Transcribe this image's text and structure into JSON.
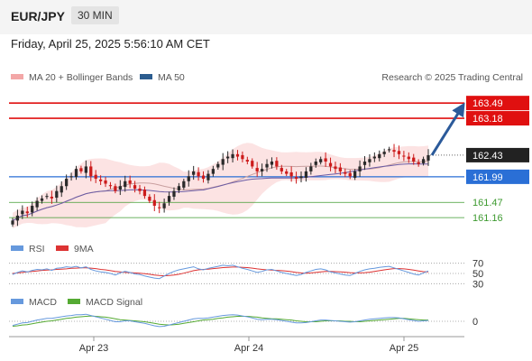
{
  "header": {
    "symbol": "EUR/JPY",
    "timeframe": "30 MIN",
    "timestamp": "Friday, April 25, 2025 5:56:10 AM CET"
  },
  "legend": {
    "ma20_bb": "MA 20 + Bollinger Bands",
    "ma50": "MA 50",
    "credit": "Research © 2025 Trading Central"
  },
  "colors": {
    "candle_up": "#2a2a2a",
    "candle_down": "#cc1b1b",
    "resistance": "#e01010",
    "current": "#222222",
    "pivot": "#2a6fd6",
    "support": "#3d9a2f",
    "arrow": "#2b5a9a",
    "ma50": "#6b5ca5",
    "ma20": "#c9a0a0",
    "bollinger_band": "#fbd7d7",
    "rsi": "#6699dd",
    "rsi_9ma": "#dd3333",
    "macd": "#6699dd",
    "macd_signal": "#55aa33"
  },
  "chart_data": [
    {
      "type": "candlestick",
      "x_axis": {
        "tick_labels": [
          "Apr 23",
          "Apr 24",
          "Apr 25"
        ]
      },
      "y_range": [
        160.85,
        163.75
      ],
      "current_price": 162.43,
      "levels": [
        {
          "value": 163.49,
          "label": "163.49",
          "kind": "resistance"
        },
        {
          "value": 163.18,
          "label": "163.18",
          "kind": "resistance"
        },
        {
          "value": 162.43,
          "label": "162.43",
          "kind": "current"
        },
        {
          "value": 161.99,
          "label": "161.99",
          "kind": "pivot"
        },
        {
          "value": 161.47,
          "label": "161.47",
          "kind": "support"
        },
        {
          "value": 161.16,
          "label": "161.16",
          "kind": "support"
        }
      ],
      "series": [
        {
          "name": "MA 20 + Bollinger Bands"
        },
        {
          "name": "MA 50"
        }
      ],
      "closes": [
        161.1,
        161.2,
        161.3,
        161.25,
        161.4,
        161.5,
        161.55,
        161.6,
        161.55,
        161.7,
        161.8,
        161.95,
        162.0,
        162.15,
        162.1,
        162.2,
        162.0,
        161.95,
        161.9,
        161.85,
        161.8,
        161.7,
        161.8,
        161.9,
        161.85,
        161.75,
        161.7,
        161.6,
        161.5,
        161.4,
        161.35,
        161.45,
        161.6,
        161.7,
        161.8,
        161.9,
        162.0,
        162.1,
        162.0,
        161.95,
        162.05,
        162.15,
        162.25,
        162.35,
        162.4,
        162.45,
        162.4,
        162.35,
        162.3,
        162.2,
        162.1,
        162.15,
        162.25,
        162.3,
        162.2,
        162.1,
        162.05,
        162.0,
        161.95,
        162.0,
        162.1,
        162.2,
        162.3,
        162.35,
        162.3,
        162.2,
        162.15,
        162.1,
        162.05,
        162.0,
        162.1,
        162.2,
        162.3,
        162.35,
        162.4,
        162.45,
        162.5,
        162.55,
        162.5,
        162.45,
        162.4,
        162.35,
        162.3,
        162.25,
        162.35,
        162.43
      ],
      "projection": {
        "from": 162.43,
        "to": 163.49
      }
    },
    {
      "type": "line",
      "series": [
        {
          "name": "RSI"
        },
        {
          "name": "9MA"
        }
      ],
      "levels": [
        {
          "value": 70,
          "label": "70"
        },
        {
          "value": 50,
          "label": "50"
        },
        {
          "value": 30,
          "label": "30"
        }
      ],
      "y_range": [
        20,
        80
      ],
      "rsi": [
        48,
        52,
        55,
        53,
        56,
        58,
        57,
        59,
        56,
        60,
        61,
        63,
        62,
        64,
        61,
        63,
        58,
        55,
        53,
        52,
        50,
        47,
        51,
        54,
        52,
        49,
        48,
        45,
        43,
        41,
        40,
        45,
        50,
        54,
        57,
        59,
        61,
        63,
        59,
        57,
        60,
        62,
        64,
        66,
        65,
        66,
        63,
        60,
        58,
        55,
        52,
        54,
        57,
        58,
        55,
        52,
        50,
        48,
        46,
        48,
        52,
        55,
        58,
        59,
        57,
        53,
        51,
        49,
        47,
        46,
        50,
        54,
        57,
        59,
        60,
        62,
        63,
        64,
        61,
        58,
        55,
        52,
        49,
        47,
        51,
        55
      ],
      "ma9": [
        50,
        51,
        52,
        53,
        54,
        55,
        56,
        56.5,
        57,
        58,
        58.5,
        59,
        60,
        60.5,
        61,
        61,
        60.5,
        59.5,
        58,
        57,
        55.5,
        54,
        53,
        52,
        51.5,
        51,
        50.5,
        49.5,
        48.5,
        47,
        46,
        45.5,
        46,
        47,
        48.5,
        50.5,
        53,
        55.5,
        57,
        58,
        58.5,
        59.5,
        60.5,
        61.5,
        62,
        62.5,
        62.5,
        62,
        61.5,
        60.5,
        59,
        58,
        57,
        56.5,
        56,
        55.5,
        54.5,
        53.5,
        52,
        51,
        50.5,
        51,
        52,
        53,
        54,
        54,
        53.5,
        53,
        52.5,
        51.5,
        51,
        51,
        51.5,
        52.5,
        54,
        55.5,
        57,
        58.5,
        59.5,
        59.5,
        59,
        58,
        56.5,
        55,
        53.5,
        53
      ]
    },
    {
      "type": "line",
      "series": [
        {
          "name": "MACD"
        },
        {
          "name": "MACD Signal"
        }
      ],
      "levels": [
        {
          "value": 0,
          "label": "0"
        }
      ],
      "y_range": [
        -0.35,
        0.35
      ],
      "macd": [
        -0.1,
        -0.07,
        -0.04,
        -0.03,
        0.0,
        0.03,
        0.05,
        0.07,
        0.07,
        0.09,
        0.11,
        0.13,
        0.14,
        0.16,
        0.16,
        0.17,
        0.14,
        0.11,
        0.08,
        0.05,
        0.02,
        -0.01,
        -0.01,
        0.01,
        0.01,
        -0.01,
        -0.03,
        -0.05,
        -0.08,
        -0.11,
        -0.13,
        -0.12,
        -0.09,
        -0.06,
        -0.03,
        0.0,
        0.03,
        0.06,
        0.07,
        0.07,
        0.08,
        0.1,
        0.12,
        0.14,
        0.15,
        0.16,
        0.15,
        0.13,
        0.11,
        0.08,
        0.05,
        0.04,
        0.05,
        0.05,
        0.04,
        0.02,
        0.0,
        -0.02,
        -0.04,
        -0.04,
        -0.03,
        -0.01,
        0.01,
        0.03,
        0.03,
        0.02,
        0.01,
        0.0,
        -0.01,
        -0.02,
        -0.01,
        0.01,
        0.03,
        0.05,
        0.06,
        0.07,
        0.08,
        0.09,
        0.09,
        0.08,
        0.06,
        0.04,
        0.02,
        0.0,
        0.01,
        0.02
      ],
      "signal": [
        -0.12,
        -0.11,
        -0.09,
        -0.08,
        -0.06,
        -0.04,
        -0.02,
        0.0,
        0.01,
        0.03,
        0.05,
        0.07,
        0.08,
        0.1,
        0.11,
        0.12,
        0.13,
        0.12,
        0.11,
        0.1,
        0.08,
        0.06,
        0.04,
        0.03,
        0.02,
        0.01,
        0.0,
        -0.01,
        -0.03,
        -0.05,
        -0.07,
        -0.08,
        -0.09,
        -0.08,
        -0.07,
        -0.05,
        -0.03,
        -0.01,
        0.01,
        0.03,
        0.04,
        0.05,
        0.07,
        0.08,
        0.1,
        0.11,
        0.12,
        0.12,
        0.12,
        0.11,
        0.1,
        0.08,
        0.07,
        0.06,
        0.06,
        0.05,
        0.04,
        0.03,
        0.01,
        0.0,
        -0.01,
        -0.01,
        -0.01,
        0.0,
        0.01,
        0.01,
        0.01,
        0.01,
        0.0,
        0.0,
        -0.01,
        -0.01,
        0.0,
        0.01,
        0.02,
        0.03,
        0.04,
        0.05,
        0.06,
        0.07,
        0.07,
        0.06,
        0.05,
        0.04,
        0.03,
        0.03
      ]
    }
  ]
}
